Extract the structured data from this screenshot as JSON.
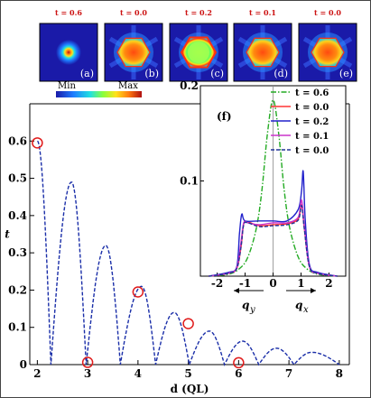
{
  "chart_data": [
    {
      "type": "line",
      "xlabel": "d (QL)",
      "ylabel": "t",
      "xlim": [
        1.85,
        8.2
      ],
      "ylim": [
        0,
        0.7
      ],
      "xticks": [
        "2",
        "3",
        "4",
        "5",
        "6",
        "7",
        "8"
      ],
      "yticks": [
        "0",
        "0.1",
        "0.2",
        "0.3",
        "0.4",
        "0.5",
        "0.6"
      ],
      "series": [
        {
          "lobes": [
            {
              "x_start": 2.0,
              "x_end": 2.27,
              "peak_x": 2.0,
              "peak_y": 0.6
            },
            {
              "x_start": 2.27,
              "x_end": 2.97,
              "peak_x": 2.68,
              "peak_y": 0.49
            },
            {
              "x_start": 2.97,
              "x_end": 3.65,
              "peak_x": 3.36,
              "peak_y": 0.32
            },
            {
              "x_start": 3.65,
              "x_end": 4.35,
              "peak_x": 4.07,
              "peak_y": 0.21
            },
            {
              "x_start": 4.35,
              "x_end": 5.02,
              "peak_x": 4.72,
              "peak_y": 0.14
            },
            {
              "x_start": 5.02,
              "x_end": 5.72,
              "peak_x": 5.42,
              "peak_y": 0.09
            },
            {
              "x_start": 5.72,
              "x_end": 6.4,
              "peak_x": 6.08,
              "peak_y": 0.063
            },
            {
              "x_start": 6.4,
              "x_end": 7.1,
              "peak_x": 6.75,
              "peak_y": 0.044
            },
            {
              "x_start": 7.1,
              "x_end": 8.0,
              "peak_x": 7.45,
              "peak_y": 0.033
            }
          ]
        }
      ],
      "markers": [
        {
          "x": 2.0,
          "y": 0.595
        },
        {
          "x": 3.0,
          "y": 0.006
        },
        {
          "x": 4.0,
          "y": 0.195
        },
        {
          "x": 5.0,
          "y": 0.11
        },
        {
          "x": 6.0,
          "y": 0.005
        }
      ],
      "colors": {
        "curve": "#1a2ea8",
        "marker": "#e01b1b"
      }
    },
    {
      "type": "line",
      "panel_label": "(f)",
      "xlim": [
        -2.6,
        2.6
      ],
      "ylim": [
        0,
        0.2
      ],
      "xticks": [
        "-2",
        "-1",
        "0",
        "1",
        "2"
      ],
      "yticks": [
        "0.1",
        "0.2"
      ],
      "xlabel_left": "q",
      "xlabel_left_sub": "y",
      "xlabel_right": "q",
      "xlabel_right_sub": "x",
      "series": [
        {
          "name": "t = 0.6",
          "color": "#22aa22",
          "style": "dashdot",
          "x": [
            -2.3,
            -1.6,
            -1.2,
            -0.9,
            -0.6,
            -0.4,
            -0.2,
            0,
            0.2,
            0.4,
            0.6,
            0.9,
            1.2,
            1.6,
            2.3
          ],
          "y": [
            0.0,
            0.002,
            0.008,
            0.02,
            0.05,
            0.09,
            0.15,
            0.185,
            0.15,
            0.09,
            0.05,
            0.02,
            0.008,
            0.002,
            0.0
          ]
        },
        {
          "name": "t = 0.0",
          "color": "#ff3333",
          "style": "solid",
          "x": [
            -2.3,
            -1.6,
            -1.3,
            -1.15,
            -1.05,
            -0.9,
            -0.5,
            0,
            0.5,
            0.9,
            1.02,
            1.12,
            1.3,
            1.6,
            2.3
          ],
          "y": [
            0.0,
            0.003,
            0.008,
            0.03,
            0.055,
            0.057,
            0.053,
            0.054,
            0.055,
            0.06,
            0.075,
            0.05,
            0.01,
            0.003,
            0.0
          ]
        },
        {
          "name": "t = 0.2",
          "color": "#2222cc",
          "style": "solid",
          "x": [
            -2.3,
            -1.6,
            -1.3,
            -1.2,
            -1.12,
            -1.0,
            -0.5,
            0,
            0.5,
            0.9,
            1.02,
            1.08,
            1.15,
            1.3,
            1.6,
            2.3
          ],
          "y": [
            0.0,
            0.004,
            0.01,
            0.045,
            0.065,
            0.058,
            0.058,
            0.058,
            0.058,
            0.07,
            0.09,
            0.11,
            0.06,
            0.012,
            0.004,
            0.0
          ]
        },
        {
          "name": "t = 0.1",
          "color": "#cc33cc",
          "style": "solid",
          "x": [
            -2.3,
            -1.6,
            -1.3,
            -1.15,
            -1.05,
            -0.9,
            -0.5,
            0,
            0.5,
            0.9,
            1.02,
            1.12,
            1.3,
            1.6,
            2.3
          ],
          "y": [
            0.0,
            0.003,
            0.009,
            0.035,
            0.056,
            0.056,
            0.054,
            0.056,
            0.056,
            0.062,
            0.08,
            0.052,
            0.01,
            0.003,
            0.0
          ]
        },
        {
          "name": "t = 0.0",
          "color": "#223399",
          "style": "dashed",
          "x": [
            -2.3,
            -1.6,
            -1.3,
            -1.15,
            -1.05,
            -0.9,
            -0.5,
            0,
            0.5,
            0.9,
            1.02,
            1.12,
            1.3,
            1.6,
            2.3
          ],
          "y": [
            0.0,
            0.003,
            0.008,
            0.03,
            0.054,
            0.056,
            0.052,
            0.053,
            0.054,
            0.059,
            0.074,
            0.049,
            0.01,
            0.003,
            0.0
          ]
        }
      ]
    }
  ],
  "insets": [
    {
      "time_label": "t = 0.6",
      "panel": "(a)",
      "pattern": "spot"
    },
    {
      "time_label": "t = 0.0",
      "panel": "(b)",
      "pattern": "hexagon"
    },
    {
      "time_label": "t = 0.2",
      "panel": "(c)",
      "pattern": "ring"
    },
    {
      "time_label": "t = 0.1",
      "panel": "(d)",
      "pattern": "hexagon"
    },
    {
      "time_label": "t = 0.0",
      "panel": "(e)",
      "pattern": "hexagon"
    }
  ],
  "colorbar": {
    "min_label": "Min",
    "max_label": "Max"
  }
}
